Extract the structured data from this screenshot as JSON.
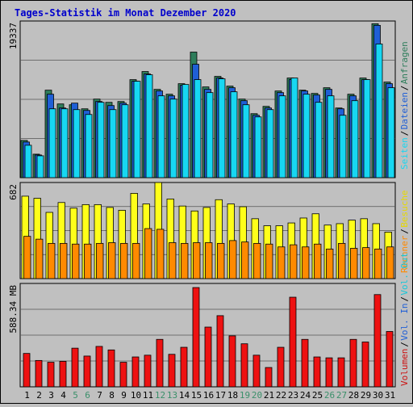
{
  "title": "Tages-Statistik im Monat Dezember 2020",
  "chart_data": [
    {
      "type": "bar",
      "panel": "top",
      "categories": [
        "1",
        "2",
        "3",
        "4",
        "5",
        "6",
        "7",
        "8",
        "9",
        "10",
        "11",
        "12",
        "13",
        "14",
        "15",
        "16",
        "17",
        "18",
        "19",
        "20",
        "21",
        "22",
        "23",
        "24",
        "25",
        "26",
        "27",
        "28",
        "29",
        "30",
        "31"
      ],
      "ymax_label": "19337",
      "ylim": [
        0,
        19337
      ],
      "series": [
        {
          "name": "Anfragen",
          "color": "#2e7d5b",
          "values": [
            4600,
            2900,
            10800,
            9100,
            9000,
            8500,
            9700,
            9300,
            9400,
            12100,
            13100,
            10900,
            10300,
            11600,
            15500,
            11200,
            12500,
            11300,
            9700,
            7900,
            8800,
            10700,
            12300,
            10800,
            10400,
            11100,
            8600,
            10300,
            12300,
            19000,
            11800
          ]
        },
        {
          "name": "Dateien",
          "color": "#1f5fd6",
          "values": [
            4400,
            2800,
            10300,
            8600,
            9200,
            8300,
            9400,
            8900,
            9200,
            11900,
            12800,
            10700,
            10100,
            11400,
            14000,
            10900,
            12300,
            11100,
            9500,
            7700,
            8600,
            10500,
            12100,
            10700,
            10200,
            10900,
            8500,
            10100,
            12100,
            18800,
            11600
          ]
        },
        {
          "name": "Seiten",
          "color": "#17d7f2",
          "values": [
            4000,
            2700,
            8500,
            8500,
            8400,
            7800,
            9300,
            8400,
            9000,
            11900,
            12700,
            10100,
            9700,
            11500,
            12100,
            10500,
            12200,
            10600,
            9000,
            7500,
            8400,
            10100,
            12300,
            10300,
            9300,
            10100,
            7700,
            9500,
            12100,
            16500,
            11100
          ]
        }
      ],
      "legend_placement": "right-vertical"
    },
    {
      "type": "bar",
      "panel": "middle",
      "categories": [
        "1",
        "2",
        "3",
        "4",
        "5",
        "6",
        "7",
        "8",
        "9",
        "10",
        "11",
        "12",
        "13",
        "14",
        "15",
        "16",
        "17",
        "18",
        "19",
        "20",
        "21",
        "22",
        "23",
        "24",
        "25",
        "26",
        "27",
        "28",
        "29",
        "30",
        "31"
      ],
      "ymax_label": "682",
      "ylim": [
        0,
        682
      ],
      "series": [
        {
          "name": "Besuche",
          "color": "#ffff1a",
          "values": [
            585,
            570,
            470,
            540,
            500,
            525,
            525,
            505,
            485,
            605,
            530,
            690,
            565,
            515,
            480,
            505,
            560,
            530,
            510,
            425,
            375,
            375,
            395,
            430,
            460,
            380,
            390,
            415,
            425,
            390,
            330
          ]
        },
        {
          "name": "Rechner",
          "color": "#ff8a00",
          "values": [
            300,
            280,
            250,
            250,
            245,
            245,
            250,
            255,
            250,
            250,
            355,
            350,
            255,
            250,
            255,
            255,
            250,
            270,
            260,
            250,
            245,
            225,
            240,
            225,
            245,
            210,
            250,
            215,
            220,
            210,
            225
          ]
        }
      ],
      "legend_placement": "right-vertical"
    },
    {
      "type": "bar",
      "panel": "bottom",
      "categories": [
        "1",
        "2",
        "3",
        "4",
        "5",
        "6",
        "7",
        "8",
        "9",
        "10",
        "11",
        "12",
        "13",
        "14",
        "15",
        "16",
        "17",
        "18",
        "19",
        "20",
        "21",
        "22",
        "23",
        "24",
        "25",
        "26",
        "27",
        "28",
        "29",
        "30",
        "31"
      ],
      "ymax_label": "588.34 MB",
      "ylim": [
        0,
        588.34
      ],
      "series": [
        {
          "name": "Volumen",
          "color": "#ee1111",
          "values": [
            190,
            150,
            140,
            145,
            220,
            175,
            230,
            210,
            140,
            170,
            180,
            270,
            185,
            225,
            565,
            340,
            405,
            290,
            245,
            180,
            110,
            225,
            510,
            270,
            170,
            165,
            165,
            270,
            255,
            525,
            315
          ]
        }
      ],
      "legend": [
        {
          "label": "Volumen",
          "color": "#cc1111"
        },
        {
          "label": "Vol. In",
          "color": "#1f5fd6"
        },
        {
          "label": "Vol. Out",
          "color": "#17c7d9"
        }
      ]
    }
  ],
  "legend_right_top": [
    {
      "label": "Anfragen",
      "color": "#2e7d5b"
    },
    {
      "label": "Dateien",
      "color": "#1f5fd6"
    },
    {
      "label": "Seiten",
      "color": "#17d7f2"
    }
  ],
  "legend_right_middle": [
    {
      "label": "Besuche",
      "color": "#e6d800"
    },
    {
      "label": "Rechner",
      "color": "#ff8a00"
    }
  ],
  "weekend_days": [
    5,
    6,
    12,
    13,
    19,
    20,
    26,
    27
  ],
  "weekend_color": "#3a8f6a"
}
